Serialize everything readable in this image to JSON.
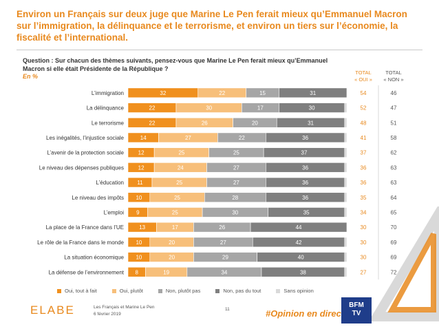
{
  "headline": "Environ un Français sur deux juge que Marine Le Pen ferait mieux qu’Emmanuel Macron sur l’immigration, la délinquance et le terrorisme, et environ un tiers sur l’économie, la fiscalité et l’international.",
  "question": "Question : Sur chacun des thèmes suivants, pensez-vous que Marine Le Pen ferait mieux qu’Emmanuel Macron si elle était Présidente de la République ?",
  "unit": "En %",
  "columns": {
    "oui_line1": "TOTAL",
    "oui_line2": "« OUI »",
    "non_line1": "TOTAL",
    "non_line2": "« NON »"
  },
  "legend": {
    "oui_tout_a_fait": "Oui, tout à fait",
    "oui_plutot": "Oui, plutôt",
    "non_plutot_pas": "Non, plutôt pas",
    "non_pas_du_tout": "Non, pas du tout",
    "sans_opinion": "Sans opinion"
  },
  "colors": {
    "accent": "#e8891e",
    "oui_tout_a_fait": "#f0901e",
    "oui_plutot": "#f7bf7a",
    "non_plutot_pas": "#a6a6a6",
    "non_pas_du_tout": "#7f7f7f",
    "sans_opinion": "#d9d9d9"
  },
  "chart_data": {
    "type": "bar",
    "orientation": "horizontal-stacked",
    "xlim": [
      0,
      100
    ],
    "categories": [
      "L’immigration",
      "La délinquance",
      "Le terrorisme",
      "Les inégalités, l’injustice sociale",
      "L’avenir de la protection sociale",
      "Le niveau des dépenses publiques",
      "L’éducation",
      "Le niveau des impôts",
      "L’emploi",
      "La place de la France dans l’UE",
      "Le rôle de la France dans le monde",
      "La situation économique",
      "La défense de l’environnement"
    ],
    "series": [
      {
        "name": "Oui, tout à fait",
        "values": [
          32,
          22,
          22,
          14,
          12,
          12,
          11,
          10,
          9,
          13,
          10,
          10,
          8
        ]
      },
      {
        "name": "Oui, plutôt",
        "values": [
          22,
          30,
          26,
          27,
          25,
          24,
          25,
          25,
          25,
          17,
          20,
          20,
          19
        ]
      },
      {
        "name": "Non, plutôt pas",
        "values": [
          15,
          17,
          20,
          22,
          25,
          27,
          27,
          28,
          30,
          26,
          27,
          29,
          34
        ]
      },
      {
        "name": "Non, pas du tout",
        "values": [
          31,
          30,
          31,
          36,
          37,
          36,
          36,
          36,
          35,
          44,
          42,
          40,
          38
        ]
      },
      {
        "name": "Sans opinion",
        "values": [
          0,
          1,
          1,
          1,
          1,
          1,
          1,
          1,
          1,
          0,
          1,
          1,
          1
        ]
      }
    ],
    "total_oui": [
      54,
      52,
      48,
      41,
      37,
      36,
      36,
      35,
      34,
      30,
      30,
      30,
      27
    ],
    "total_non": [
      46,
      47,
      51,
      58,
      62,
      63,
      63,
      64,
      65,
      70,
      69,
      69,
      72
    ],
    "legend_position": "bottom"
  },
  "footer": {
    "logo": "ELABE",
    "source_line1": "Les Français et Marine Le Pen",
    "source_line2": "6 février 2019",
    "page": "11",
    "hashtag": "#Opinion en direct",
    "partner_logo_line1": "BFM",
    "partner_logo_line2": "TV"
  }
}
